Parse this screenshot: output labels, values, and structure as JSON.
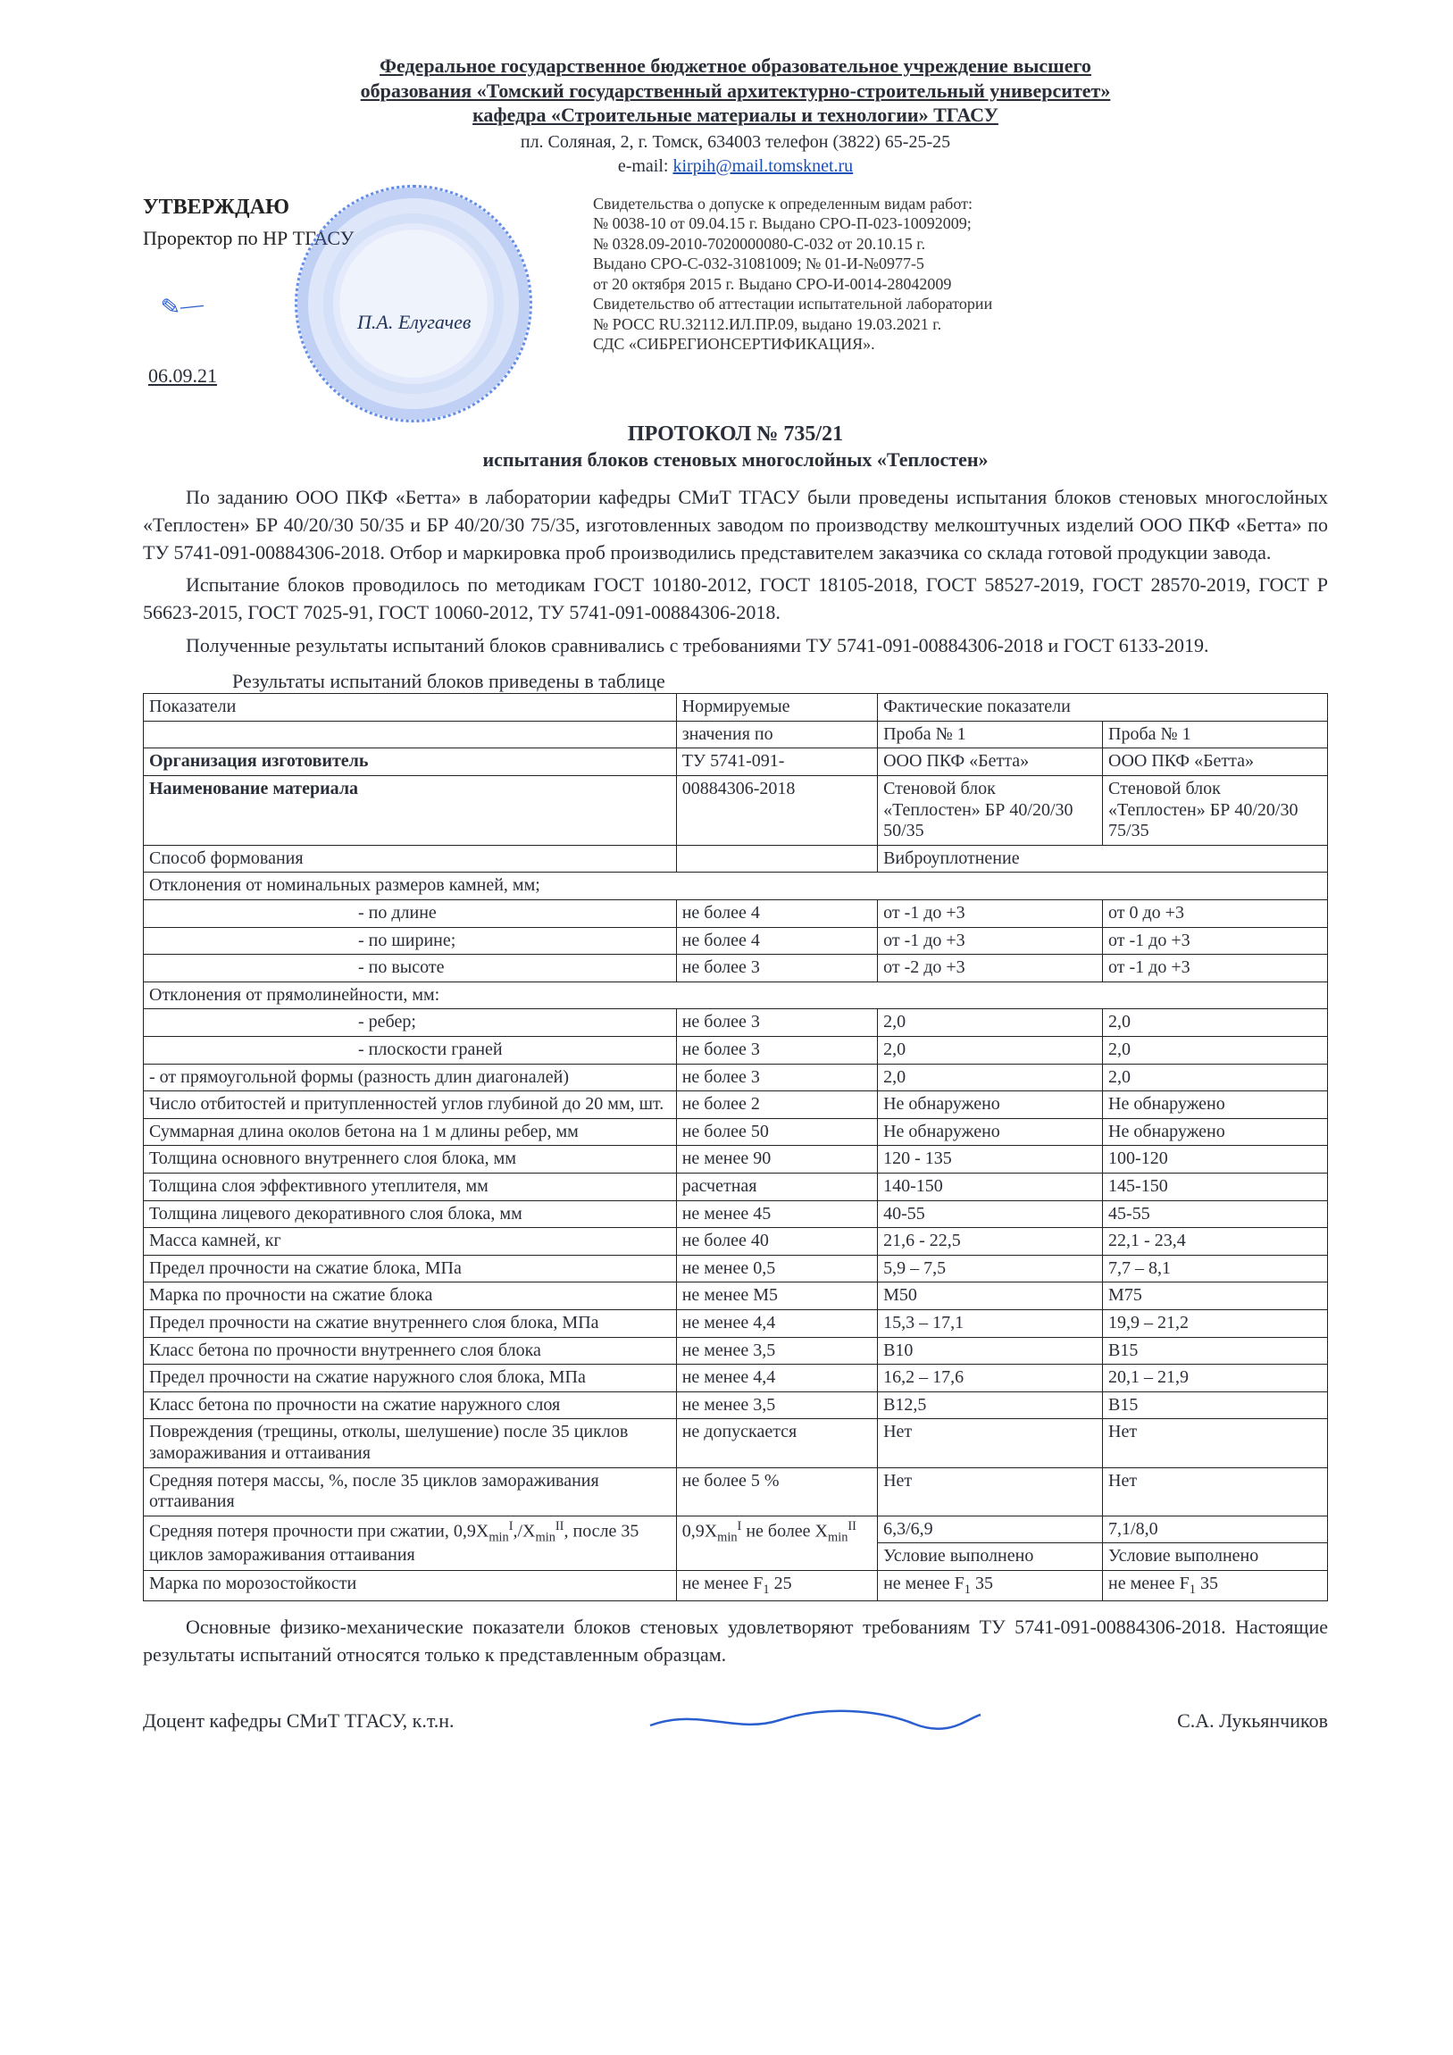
{
  "header": {
    "line1": "Федеральное государственное бюджетное образовательное учреждение высшего",
    "line2": "образования «Томский государственный архитектурно-строительный университет»",
    "line3": "кафедра «Строительные материалы и технологии» ТГАСУ",
    "address": "пл. Соляная, 2, г. Томск, 634003 телефон (3822) 65-25-25",
    "email_label": "e-mail:",
    "email": "kirpih@mail.tomsknet.ru"
  },
  "approval": {
    "approve": "УТВЕРЖДАЮ",
    "role": "Проректор по НР ТГАСУ",
    "name": "П.А. Елугачев",
    "date": "06.09.21"
  },
  "credentials": [
    "Свидетельства о допуске к определенным видам работ:",
    "№ 0038-10 от 09.04.15 г. Выдано СРО-П-023-10092009;",
    "№ 0328.09-2010-7020000080-С-032 от 20.10.15 г.",
    "Выдано СРО-С-032-31081009; № 01-И-№0977-5",
    "от 20 октября 2015 г. Выдано СРО-И-0014-28042009",
    "Свидетельство об аттестации испытательной лаборатории",
    "№ РОСС RU.32112.ИЛ.ПР.09, выдано 19.03.2021 г.",
    "СДС «СИБРЕГИОНСЕРТИФИКАЦИЯ»."
  ],
  "protocol": {
    "title": "ПРОТОКОЛ № 735/21",
    "subtitle": "испытания блоков стеновых многослойных «Теплостен»"
  },
  "paragraphs": {
    "p1": "По заданию ООО ПКФ «Бетта» в лаборатории кафедры СМиТ ТГАСУ были проведены испытания блоков стеновых многослойных «Теплостен» БР 40/20/30 50/35 и БР 40/20/30 75/35, изготовленных заводом по производству мелкоштучных изделий ООО ПКФ «Бетта» по ТУ 5741-091-00884306-2018. Отбор и маркировка проб производились представителем заказчика со склада готовой продукции завода.",
    "p2": "Испытание блоков проводилось по методикам ГОСТ 10180-2012, ГОСТ 18105-2018, ГОСТ 58527-2019, ГОСТ 28570-2019, ГОСТ Р 56623-2015, ГОСТ 7025-91, ГОСТ 10060-2012, ТУ 5741-091-00884306-2018.",
    "p3": "Полученные результаты испытаний блоков сравнивались с требованиями ТУ 5741-091-00884306-2018 и ГОСТ 6133-2019.",
    "caption": "Результаты испытаний блоков приведены в таблице"
  },
  "table": {
    "colors": {
      "border": "#222222",
      "text": "#2a2e38",
      "bg": "#ffffff"
    },
    "col_widths": [
      "45%",
      "17%",
      "19%",
      "19%"
    ],
    "head": {
      "c1": "Показатели",
      "c2a": "Нормируемые значения по ТУ 5741-091-00884306-2018",
      "c3": "Фактические показатели",
      "c3a": "Проба № 1",
      "c3b": "Проба № 1"
    },
    "org_row": {
      "label": "Организация изготовитель",
      "a": "ООО ПКФ «Бетта»",
      "b": "ООО ПКФ «Бетта»"
    },
    "mat_row": {
      "label": "Наименование материала",
      "a": "Стеновой блок «Теплостен» БР 40/20/30 50/35",
      "b": "Стеновой блок «Теплостен» БР 40/20/30 75/35"
    },
    "rows": [
      {
        "label": "Способ  формования",
        "norm": "",
        "a": "Виброуплотнение",
        "b": "",
        "merge_ab": true
      },
      {
        "label": "Отклонения от номинальных размеров камней, мм;",
        "norm": "",
        "a": "",
        "b": "",
        "span4": true
      },
      {
        "label": "- по длине",
        "indent": true,
        "norm": "не более 4",
        "a": "от -1 до +3",
        "b": "от 0 до +3"
      },
      {
        "label": "- по ширине;",
        "indent": true,
        "norm": "не более 4",
        "a": "от -1 до +3",
        "b": "от -1 до +3"
      },
      {
        "label": "- по высоте",
        "indent": true,
        "norm": "не более 3",
        "a": "от -2 до +3",
        "b": "от -1 до +3"
      },
      {
        "label": "Отклонения от прямолинейности, мм:",
        "norm": "",
        "a": "",
        "b": "",
        "span4": true
      },
      {
        "label": "- ребер;",
        "indent": true,
        "norm": "не более 3",
        "a": "2,0",
        "b": "2,0"
      },
      {
        "label": "- плоскости граней",
        "indent": true,
        "norm": "не более 3",
        "a": "2,0",
        "b": "2,0"
      },
      {
        "label": "- от прямоугольной формы (разность длин диагоналей)",
        "norm": "не более 3",
        "a": "2,0",
        "b": "2,0"
      },
      {
        "label": "Число отбитостей и притупленностей углов глубиной до 20 мм, шт.",
        "norm": "не более 2",
        "a": "Не обнаружено",
        "b": "Не обнаружено"
      },
      {
        "label": "Суммарная длина околов бетона на 1 м длины ребер, мм",
        "norm": "не более 50",
        "a": "Не обнаружено",
        "b": "Не обнаружено"
      },
      {
        "label": "Толщина основного внутреннего слоя блока, мм",
        "norm": "не менее 90",
        "a": "120 - 135",
        "b": "100-120"
      },
      {
        "label": "Толщина слоя эффективного утеплителя, мм",
        "norm": "расчетная",
        "a": "140-150",
        "b": "145-150"
      },
      {
        "label": "Толщина лицевого декоративного слоя блока, мм",
        "norm": "не менее 45",
        "a": "40-55",
        "b": "45-55"
      },
      {
        "label": "Масса камней, кг",
        "norm": "не более 40",
        "a": "21,6 - 22,5",
        "b": "22,1 - 23,4"
      },
      {
        "label": "Предел прочности на сжатие блока, МПа",
        "norm": "не менее 0,5",
        "a": "5,9 – 7,5",
        "b": "7,7 – 8,1"
      },
      {
        "label": "Марка по  прочности на сжатие блока",
        "norm": "не менее М5",
        "a": "М50",
        "b": "М75"
      },
      {
        "label": "Предел прочности на сжатие внутреннего слоя блока, МПа",
        "norm": "не менее 4,4",
        "a": "15,3 – 17,1",
        "b": "19,9 – 21,2"
      },
      {
        "label": "Класс бетона по прочности внутреннего слоя блока",
        "norm": "не менее 3,5",
        "a": "В10",
        "b": "В15"
      },
      {
        "label": "Предел прочности на сжатие наружного слоя блока, МПа",
        "norm": "не менее 4,4",
        "a": "16,2 – 17,6",
        "b": "20,1 – 21,9"
      },
      {
        "label": "Класс бетона по прочности на сжатие наружного слоя",
        "norm": "не менее 3,5",
        "a": "В12,5",
        "b": "В15"
      },
      {
        "label": "Повреждения (трещины, отколы, шелушение) после 35 циклов замораживания и оттаивания",
        "norm": "не допускается",
        "a": "Нет",
        "b": "Нет"
      },
      {
        "label": "Средняя потеря массы, %, после 35 циклов замораживания оттаивания",
        "norm": "не более 5 %",
        "a": "Нет",
        "b": "Нет"
      }
    ],
    "strength_loss": {
      "label_html": "Средняя потеря прочности  при  сжатии, 0,9X<sub>min</sub><sup>I</sup>,/X<sub>min</sub><sup>II</sup>, после 35 циклов замораживания оттаивания",
      "norm_html": "0,9X<sub>min</sub><sup>I</sup> не более X<sub>min</sub><sup>II</sup>",
      "a1": "6,3/6,9",
      "b1": "7,1/8,0",
      "a2": "Условие выполнено",
      "b2": "Условие выполнено"
    },
    "frost": {
      "label": "Марка по морозостойкости",
      "norm_html": "не менее F<sub>1</sub> 25",
      "a_html": "не менее F<sub>1</sub> 35",
      "b_html": "не менее F<sub>1</sub> 35"
    }
  },
  "footer": "Основные физико-механические показатели блоков стеновых удовлетворяют требованиям ТУ 5741-091-00884306-2018. Настоящие результаты испытаний относятся только к представленным образцам.",
  "signer": {
    "role": "Доцент кафедры СМиТ ТГАСУ, к.т.н.",
    "name": "С.А. Лукьянчиков"
  },
  "svg_colors": {
    "signature": "#2b5fcf"
  }
}
